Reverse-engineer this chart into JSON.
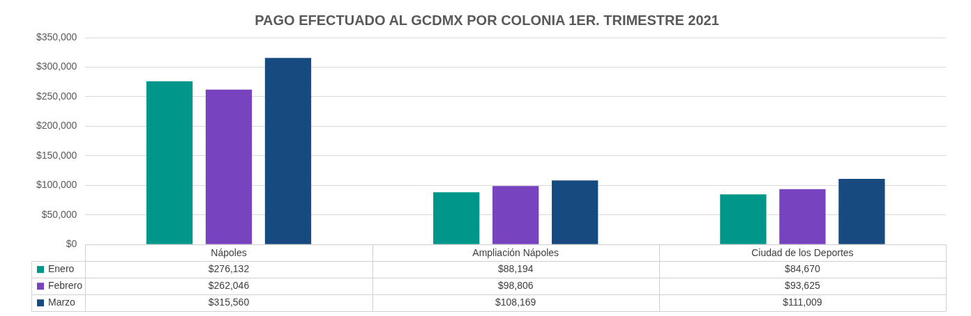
{
  "chart_data": {
    "type": "bar",
    "title": "PAGO EFECTUADO AL GCDMX POR COLONIA 1ER. TRIMESTRE 2021",
    "categories": [
      "Nápoles",
      "Ampliación Nápoles",
      "Ciudad de los Deportes"
    ],
    "series": [
      {
        "name": "Enero",
        "color": "#00968a",
        "values": [
          276132,
          88194,
          84670
        ],
        "value_labels": [
          "$276,132",
          "$88,194",
          "$84,670"
        ]
      },
      {
        "name": "Febrero",
        "color": "#7743bf",
        "values": [
          262046,
          98806,
          93625
        ],
        "value_labels": [
          "$262,046",
          "$98,806",
          "$93,625"
        ]
      },
      {
        "name": "Marzo",
        "color": "#174a7e",
        "values": [
          315560,
          108169,
          111009
        ],
        "value_labels": [
          "$315,560",
          "$108,169",
          "$111,009"
        ]
      }
    ],
    "ylim": [
      0,
      350000
    ],
    "yticks": [
      {
        "value": 0,
        "label": "$0"
      },
      {
        "value": 50000,
        "label": "$50,000"
      },
      {
        "value": 100000,
        "label": "$100,000"
      },
      {
        "value": 150000,
        "label": "$150,000"
      },
      {
        "value": 200000,
        "label": "$200,000"
      },
      {
        "value": 250000,
        "label": "$250,000"
      },
      {
        "value": 300000,
        "label": "$300,000"
      },
      {
        "value": 350000,
        "label": "$350,000"
      }
    ],
    "grid": "y",
    "legend": "bottom"
  }
}
